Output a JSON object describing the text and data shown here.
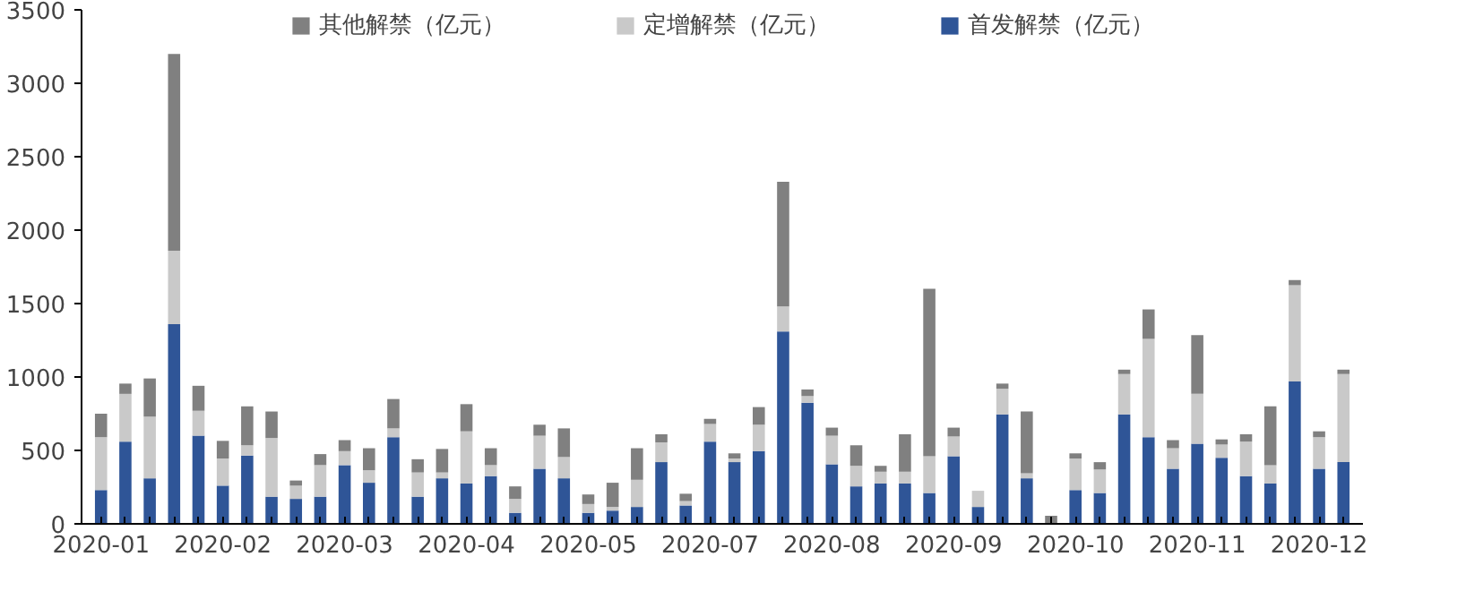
{
  "chart_data": {
    "type": "bar",
    "stacked": true,
    "legend": "top",
    "grid": false,
    "categories": [
      "2020-01",
      null,
      null,
      null,
      null,
      "2020-02",
      null,
      null,
      null,
      null,
      "2020-03",
      null,
      null,
      null,
      null,
      "2020-04",
      null,
      null,
      null,
      null,
      "2020-05",
      null,
      null,
      null,
      null,
      "2020-07",
      null,
      null,
      null,
      null,
      "2020-08",
      null,
      null,
      null,
      null,
      "2020-09",
      null,
      null,
      null,
      null,
      "2020-10",
      null,
      null,
      null,
      null,
      "2020-11",
      null,
      null,
      null,
      null,
      "2020-12",
      null
    ],
    "ylim": [
      0,
      3500
    ],
    "yticks": [
      0,
      500,
      1000,
      1500,
      2000,
      2500,
      3000,
      3500
    ],
    "series": [
      {
        "name": "首发解禁（亿元）",
        "color": "#2f5597",
        "values": [
          230,
          560,
          310,
          1360,
          600,
          260,
          465,
          185,
          170,
          185,
          400,
          280,
          590,
          185,
          310,
          275,
          325,
          75,
          375,
          310,
          75,
          90,
          115,
          420,
          125,
          560,
          420,
          495,
          1310,
          825,
          405,
          255,
          275,
          275,
          210,
          460,
          115,
          745,
          310,
          0,
          230,
          210,
          745,
          590,
          375,
          545,
          450,
          325,
          275,
          970,
          375,
          420
        ]
      },
      {
        "name": "定增解禁（亿元）",
        "color": "#c9c9c9",
        "values": [
          360,
          325,
          420,
          500,
          170,
          185,
          70,
          400,
          90,
          215,
          95,
          85,
          60,
          165,
          40,
          355,
          75,
          95,
          225,
          145,
          60,
          25,
          185,
          135,
          30,
          120,
          25,
          180,
          170,
          45,
          195,
          140,
          80,
          80,
          250,
          135,
          110,
          175,
          35,
          0,
          215,
          160,
          275,
          670,
          140,
          340,
          90,
          235,
          125,
          655,
          215,
          600
        ]
      },
      {
        "name": "其他解禁（亿元）",
        "color": "#808080",
        "values": [
          160,
          70,
          260,
          1340,
          170,
          120,
          265,
          180,
          35,
          75,
          75,
          150,
          200,
          90,
          160,
          185,
          115,
          85,
          75,
          195,
          65,
          165,
          215,
          55,
          50,
          35,
          35,
          120,
          850,
          45,
          55,
          140,
          40,
          255,
          1140,
          60,
          0,
          35,
          420,
          55,
          35,
          50,
          30,
          200,
          55,
          400,
          35,
          50,
          400,
          35,
          40,
          30
        ]
      }
    ]
  }
}
